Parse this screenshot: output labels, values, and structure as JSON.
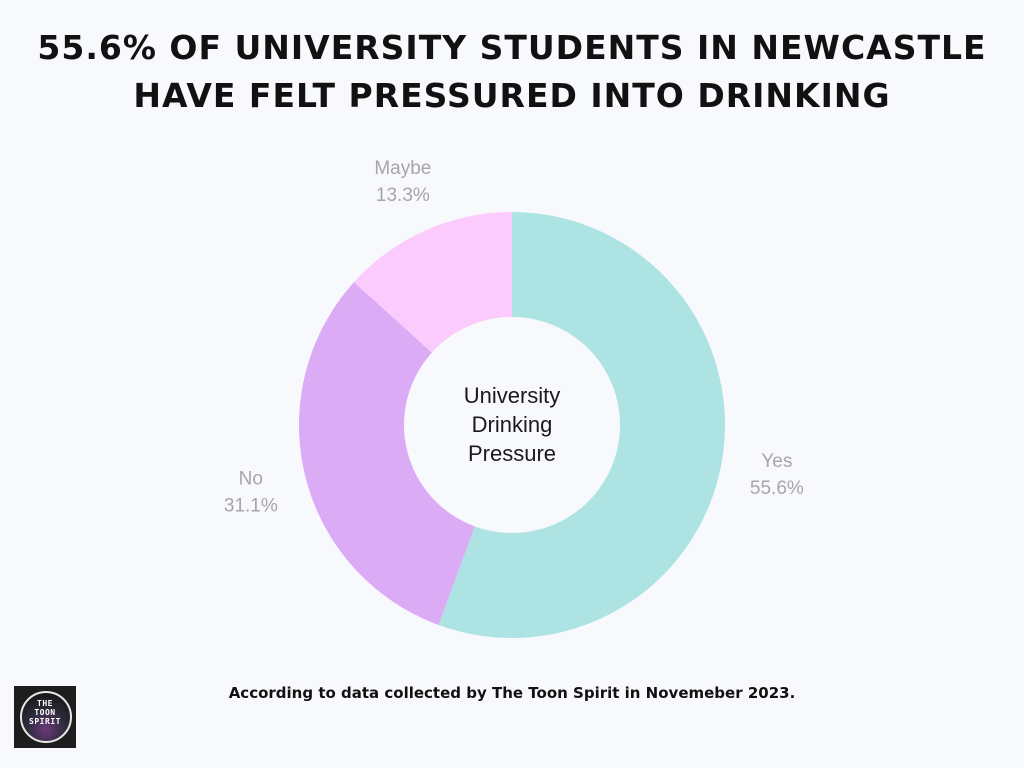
{
  "title": {
    "line1": "55.6% OF UNIVERSITY STUDENTS IN NEWCASTLE",
    "line2": "HAVE FELT PRESSURED INTO DRINKING"
  },
  "chart_data": {
    "type": "pie",
    "donut": true,
    "center_label": [
      "University",
      "Drinking",
      "Pressure"
    ],
    "slices": [
      {
        "label": "Yes",
        "value": 55.6,
        "display": "55.6%",
        "color": "#aee3e3"
      },
      {
        "label": "No",
        "value": 31.1,
        "display": "31.1%",
        "color": "#dbabf5"
      },
      {
        "label": "Maybe",
        "value": 13.3,
        "display": "13.3%",
        "color": "#fccbfd"
      }
    ],
    "label_color": "#a6a6a6"
  },
  "footer": "According to data collected by The Toon Spirit in Novemeber 2023.",
  "logo": {
    "lines": [
      "THE",
      "TOON",
      "SPIRIT"
    ]
  }
}
